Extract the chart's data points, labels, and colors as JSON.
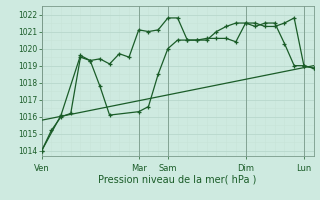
{
  "title": "",
  "xlabel": "Pression niveau de la mer( hPa )",
  "ylabel": "",
  "bg_color": "#ceeae0",
  "grid_major_color": "#b8d8cc",
  "grid_minor_color": "#c8e4d8",
  "line_color": "#1a5c28",
  "ylim": [
    1013.7,
    1022.5
  ],
  "yticks": [
    1014,
    1015,
    1016,
    1017,
    1018,
    1019,
    1020,
    1021,
    1022
  ],
  "day_labels": [
    "Ven",
    "Mar",
    "Sam",
    "Dim",
    "Lun"
  ],
  "day_positions": [
    0,
    10,
    13,
    21,
    27
  ],
  "xlim": [
    0,
    28
  ],
  "series1_x": [
    0,
    1,
    2,
    3,
    4,
    5,
    6,
    7,
    8,
    9,
    10,
    11,
    12,
    13,
    14,
    15,
    16,
    17,
    18,
    19,
    20,
    21,
    22,
    23,
    24,
    25,
    26,
    27,
    28
  ],
  "series1_y": [
    1014.0,
    1015.2,
    1016.0,
    1016.2,
    1019.5,
    1019.3,
    1019.4,
    1019.1,
    1019.7,
    1019.5,
    1021.1,
    1021.0,
    1021.1,
    1021.8,
    1021.8,
    1020.5,
    1020.5,
    1020.6,
    1020.6,
    1020.6,
    1020.4,
    1021.5,
    1021.3,
    1021.5,
    1021.5,
    1020.3,
    1019.0,
    1019.0,
    1018.85
  ],
  "series2_x": [
    0,
    2,
    4,
    5,
    6,
    7,
    10,
    11,
    12,
    13,
    14,
    15,
    16,
    17,
    18,
    19,
    20,
    21,
    22,
    23,
    24,
    25,
    26,
    27,
    28
  ],
  "series2_y": [
    1014.0,
    1016.1,
    1019.6,
    1019.3,
    1017.8,
    1016.1,
    1016.3,
    1016.6,
    1018.5,
    1020.0,
    1020.5,
    1020.5,
    1020.5,
    1020.5,
    1021.0,
    1021.3,
    1021.5,
    1021.5,
    1021.5,
    1021.3,
    1021.3,
    1021.5,
    1021.8,
    1019.0,
    1018.85
  ],
  "series3_x": [
    0,
    28
  ],
  "series3_y": [
    1015.8,
    1019.0
  ],
  "total_points": 29
}
